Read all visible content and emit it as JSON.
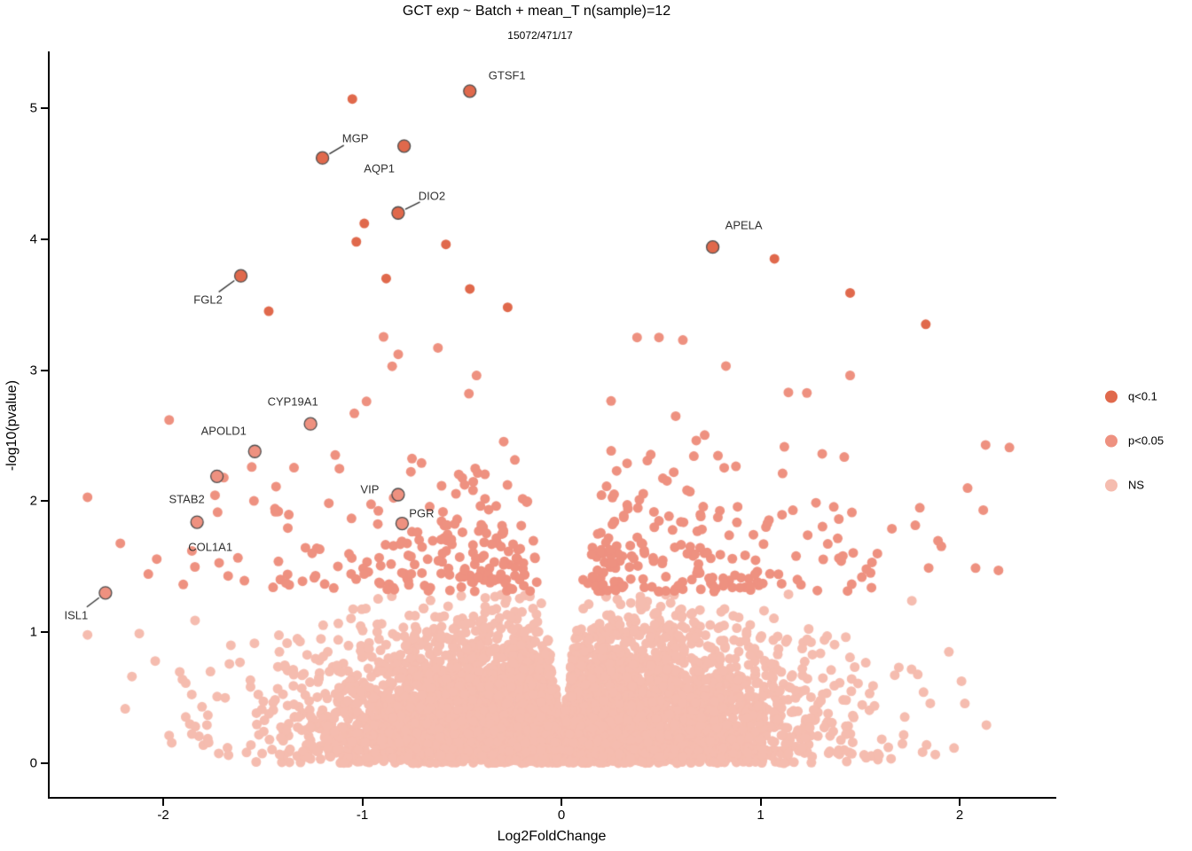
{
  "colors": {
    "q01": "#e0694c",
    "p05": "#ee9180",
    "ns": "#f5bcaf",
    "point_outline": "#4d4d4d",
    "leader_line": "#333333",
    "axis": "#000000",
    "background": "#ffffff"
  },
  "chart_data": {
    "type": "scatter",
    "subtype": "volcano",
    "title": "GCT exp ~ Batch + mean_T n(sample)=12",
    "subtitle": "15072/471/17",
    "xlabel": "Log2FoldChange",
    "ylabel": "-log10(pvalue)",
    "xlim": [
      -2.58,
      2.5
    ],
    "ylim": [
      -0.28,
      5.43
    ],
    "x_ticks": [
      -2,
      -1,
      0,
      1,
      2
    ],
    "y_ticks": [
      0,
      1,
      2,
      3,
      4,
      5
    ],
    "grid": false,
    "counts": {
      "total_genes": 15072,
      "p_lt_005": 471,
      "q_lt_01": 17
    },
    "legend": {
      "position": "right",
      "entries": [
        {
          "label": "q<0.1",
          "color": "#e0694c"
        },
        {
          "label": "p<0.05",
          "color": "#ee9180"
        },
        {
          "label": "NS",
          "color": "#f5bcaf"
        }
      ]
    },
    "labeled_points": [
      {
        "gene": "GTSF1",
        "x": -0.46,
        "y": 5.13,
        "category": "q<0.1",
        "label_offset": [
          42,
          -18
        ],
        "leader": false
      },
      {
        "gene": "MGP",
        "x": -1.2,
        "y": 4.62,
        "category": "q<0.1",
        "label_offset": [
          37,
          -22
        ],
        "leader": true
      },
      {
        "gene": "AQP1",
        "x": -0.79,
        "y": 4.71,
        "category": "q<0.1",
        "label_offset": [
          -28,
          25
        ],
        "leader": false
      },
      {
        "gene": "DIO2",
        "x": -0.82,
        "y": 4.2,
        "category": "q<0.1",
        "label_offset": [
          38,
          -19
        ],
        "leader": true
      },
      {
        "gene": "APELA",
        "x": 0.76,
        "y": 3.94,
        "category": "q<0.1",
        "label_offset": [
          35,
          -25
        ],
        "leader": false
      },
      {
        "gene": "FGL2",
        "x": -1.61,
        "y": 3.72,
        "category": "q<0.1",
        "label_offset": [
          -37,
          27
        ],
        "leader": true
      },
      {
        "gene": "CYP19A1",
        "x": -1.26,
        "y": 2.59,
        "category": "p<0.05",
        "label_offset": [
          -20,
          -25
        ],
        "leader": false
      },
      {
        "gene": "APOLD1",
        "x": -1.54,
        "y": 2.38,
        "category": "p<0.05",
        "label_offset": [
          -35,
          -23
        ],
        "leader": false
      },
      {
        "gene": "STAB2",
        "x": -1.73,
        "y": 2.19,
        "category": "p<0.05",
        "label_offset": [
          -34,
          26
        ],
        "leader": false
      },
      {
        "gene": "COL1A1",
        "x": -1.83,
        "y": 1.84,
        "category": "p<0.05",
        "label_offset": [
          15,
          28
        ],
        "leader": false
      },
      {
        "gene": "VIP",
        "x": -0.82,
        "y": 2.05,
        "category": "p<0.05",
        "label_offset": [
          -32,
          -6
        ],
        "leader": false
      },
      {
        "gene": "PGR",
        "x": -0.8,
        "y": 1.83,
        "category": "p<0.05",
        "label_offset": [
          22,
          -12
        ],
        "leader": false
      },
      {
        "gene": "ISL1",
        "x": -2.29,
        "y": 1.3,
        "category": "p<0.05",
        "label_offset": [
          -33,
          25
        ],
        "leader": true
      }
    ],
    "q01_unlabeled_points": [
      [
        -1.05,
        5.07
      ],
      [
        -0.99,
        4.12
      ],
      [
        -1.03,
        3.98
      ],
      [
        -0.58,
        3.96
      ],
      [
        -0.88,
        3.7
      ],
      [
        -0.46,
        3.62
      ],
      [
        -1.47,
        3.45
      ],
      [
        -0.27,
        3.48
      ],
      [
        1.07,
        3.85
      ],
      [
        1.45,
        3.59
      ],
      [
        1.83,
        3.35
      ]
    ],
    "p05_outlier_points": [
      [
        2.25,
        2.41
      ],
      [
        2.04,
        2.1
      ],
      [
        1.66,
        1.79
      ],
      [
        2.08,
        1.49
      ],
      [
        1.8,
        1.95
      ],
      [
        1.14,
        2.83
      ],
      [
        1.45,
        2.96
      ],
      [
        -1.97,
        2.62
      ],
      [
        -2.38,
        2.03
      ],
      [
        -1.04,
        2.67
      ],
      [
        0.38,
        3.25
      ],
      [
        0.49,
        3.25
      ],
      [
        0.61,
        3.23
      ],
      [
        -0.62,
        3.17
      ],
      [
        -0.85,
        3.03
      ]
    ],
    "ns_outlier_points": [
      [
        -2.38,
        0.98
      ],
      [
        -2.12,
        0.99
      ],
      [
        -2.04,
        0.78
      ],
      [
        -1.84,
        1.09
      ],
      [
        -1.66,
        0.9
      ],
      [
        1.76,
        1.24
      ]
    ],
    "cloud": {
      "seed": 7,
      "ns": {
        "count": 5200,
        "x_sigma": 0.6,
        "y_sigma": 0.5,
        "y_max": 1.29
      },
      "p05": {
        "count": 430,
        "x_sigma": 0.78,
        "y_min": 1.31,
        "y_decay": 0.38,
        "y_max": 3.28
      },
      "envelope": {
        "slope": 10.5,
        "intercept": 0.27
      },
      "x_clip": 2.45
    }
  }
}
